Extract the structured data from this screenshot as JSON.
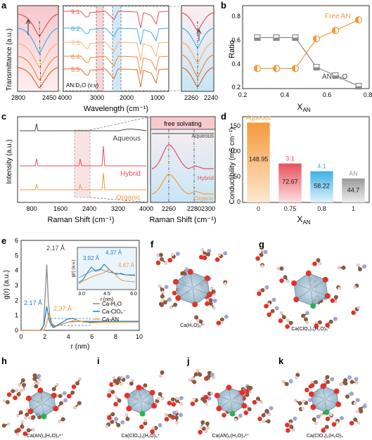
{
  "panels": {
    "a": {
      "letter": "a",
      "ylabel": "Transmittance (a.u.)",
      "xlabel": "Wavelength (cm⁻¹)",
      "left_ticks": [
        "2800",
        "2450"
      ],
      "mid_ticks": [
        "4000",
        "3000",
        "2000",
        "1000"
      ],
      "right_ticks": [
        "2260",
        "2240"
      ],
      "ratios": [
        "9:1",
        "8:2",
        "7:3",
        "6:4",
        "5:5"
      ],
      "ratio_colors": [
        "#e8505b",
        "#3fb0e6",
        "#f7b26b",
        "#f08a3a",
        "#e06a2a"
      ],
      "annotation": "AN:D₂O (v:v)"
    },
    "b": {
      "letter": "b",
      "ylabel": "Ratio",
      "xlabel": "X",
      "xlabel_sub": "AN",
      "label_free": "Free AN",
      "label_and2o": "AN-D₂O",
      "xticks": [
        "0.2",
        "0.4",
        "0.6",
        "0.8"
      ],
      "yticks": [
        "0.2",
        "0.4",
        "0.6",
        "0.8"
      ]
    },
    "c": {
      "letter": "c",
      "ylabel": "Intensity (a.u.)",
      "xlabel": "Raman Shift (cm⁻¹)",
      "xticks": [
        "800",
        "1600",
        "2400",
        "3200",
        "4000"
      ],
      "series": [
        "Aqueous",
        "Hybrid",
        "Organic"
      ],
      "inset_title": "free solvating",
      "inset_xticks": [
        "2260",
        "2280",
        "2300"
      ],
      "inset_xlabel": "Raman Shift (cm⁻¹)",
      "inset_series": [
        "Aqueous",
        "Hybrid",
        "Organic"
      ]
    },
    "d": {
      "letter": "d",
      "ylabel": "Conductibility (mS cm⁻¹)",
      "xlabel": "X",
      "xlabel_sub": "AN",
      "yticks": [
        "0",
        "50",
        "100",
        "150"
      ]
    },
    "e": {
      "letter": "e",
      "ylabel": "g(r) (a.u.)",
      "xlabel": "r (nm)",
      "xticks": [
        "0",
        "2",
        "4",
        "6",
        "8",
        "10"
      ],
      "yticks": [
        "0",
        "1",
        "2",
        "3",
        "4",
        "5",
        "6"
      ],
      "peak_labels": [
        "2.17 Å",
        "2.17 Å",
        "2.37 Å"
      ],
      "inset_labels": [
        "3.92 Å",
        "4.37 Å",
        "4.67 Å"
      ],
      "inset_ylabel": "g(r) (a.u.)",
      "inset_xlabel": "r (nm)",
      "inset_xticks": [
        "3.0",
        "4.5",
        "6.0"
      ],
      "legend": [
        "Ca-H₂O",
        "Ca-ClO₄⁻",
        "Ca-AN"
      ]
    },
    "f": {
      "letter": "f",
      "caption": "Ca(H₂O)₆²⁺"
    },
    "g": {
      "letter": "g",
      "caption": "Ca(ClO₄)₁(H₂O)₅⁺"
    },
    "h": {
      "letter": "h",
      "caption": "Ca(AN)₁(H₂O)₅²⁺"
    },
    "i": {
      "letter": "i",
      "caption": "Ca(ClO₄)₁(H₂O)₅⁺"
    },
    "j": {
      "letter": "j",
      "caption": "Ca(AN)₂(H₂O)₄²⁺"
    },
    "k": {
      "letter": "k",
      "caption": "Ca(ClO₄)₂(H₂O)₄"
    }
  },
  "chart_data": [
    {
      "panel": "b",
      "type": "scatter",
      "xlabel": "X_AN",
      "ylabel": "Ratio",
      "xlim": [
        0.2,
        0.8
      ],
      "ylim": [
        0.2,
        0.9
      ],
      "series": [
        {
          "name": "Free AN",
          "color": "#f59a3b",
          "x": [
            0.27,
            0.36,
            0.45,
            0.55,
            0.64,
            0.75
          ],
          "y": [
            0.37,
            0.37,
            0.37,
            0.62,
            0.69,
            0.78
          ]
        },
        {
          "name": "AN-D₂O",
          "color": "#8a8a8a",
          "x": [
            0.27,
            0.36,
            0.45,
            0.55,
            0.64,
            0.75
          ],
          "y": [
            0.63,
            0.63,
            0.63,
            0.38,
            0.31,
            0.22
          ]
        }
      ]
    },
    {
      "panel": "d",
      "type": "bar",
      "xlabel": "X_AN",
      "ylabel": "Conductibility (mS cm⁻¹)",
      "ylim": [
        0,
        160
      ],
      "categories": [
        "0",
        "0.75",
        "0.8",
        "1"
      ],
      "bar_labels": [
        "Aqueous",
        "3:1",
        "4:1",
        "AN"
      ],
      "values": [
        148.95,
        72.67,
        58.22,
        44.7
      ],
      "colors": [
        "#f59a3b",
        "#e8505b",
        "#3fb0e6",
        "#9a9a9a"
      ]
    },
    {
      "panel": "e",
      "type": "line",
      "xlabel": "r (nm)",
      "ylabel": "g(r) (a.u.)",
      "xlim": [
        0,
        10
      ],
      "ylim": [
        0,
        6
      ],
      "series": [
        {
          "name": "Ca-H₂O",
          "color": "#8a8a8a",
          "x": [
            0,
            1.6,
            1.9,
            2.05,
            2.17,
            2.3,
            2.5,
            2.8,
            3.2,
            4,
            5,
            6,
            7,
            8,
            9,
            10
          ],
          "y": [
            0,
            0,
            0.3,
            2.5,
            4.4,
            2.0,
            0.5,
            0.2,
            0.35,
            0.55,
            0.6,
            0.6,
            0.6,
            0.6,
            0.6,
            0.6
          ]
        },
        {
          "name": "Ca-ClO₄⁻",
          "color": "#1f7fd1",
          "x": [
            0,
            1.7,
            1.95,
            2.17,
            2.4,
            2.7,
            3.2,
            3.92,
            4.37,
            5,
            6,
            7,
            8,
            9,
            10
          ],
          "y": [
            0,
            0,
            0.4,
            1.6,
            0.6,
            0.2,
            0.4,
            0.75,
            0.8,
            0.6,
            0.55,
            0.6,
            0.6,
            0.6,
            0.6
          ]
        },
        {
          "name": "Ca-AN",
          "color": "#f59a3b",
          "x": [
            0,
            1.9,
            2.1,
            2.37,
            2.6,
            2.9,
            3.4,
            4.0,
            4.67,
            5.3,
            6,
            7,
            8,
            9,
            10
          ],
          "y": [
            0,
            0,
            0.3,
            1.1,
            0.5,
            0.25,
            0.4,
            0.55,
            0.7,
            0.55,
            0.5,
            0.55,
            0.55,
            0.55,
            0.55
          ]
        }
      ]
    }
  ]
}
